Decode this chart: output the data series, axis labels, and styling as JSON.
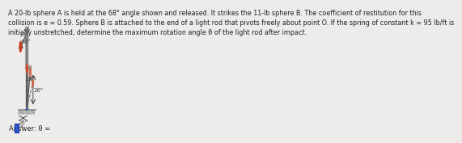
{
  "title_text": "A 20-lb sphere A is held at the 68° angle shown and released. It strikes the 11-lb sphere B. The coefficient of restitution for this\ncollision is e = 0.59. Sphere B is attached to the end of a light rod that pivots freely about point O. If the spring of constant k = 95 lb/ft is\ninitially unstretched, determine the maximum rotation angle θ of the light rod after impact.",
  "answer_label": "Answer: θ =",
  "answer_unit": "°",
  "bg_color": "#edecea",
  "sphere_A_color": "#c84020",
  "sphere_B_color": "#c85030",
  "sphere_B2_color": "#d07050",
  "sphere_B3_color": "#cc6644",
  "rod_color": "#555555",
  "spring_color": "#777777",
  "ground_color": "#888888",
  "wall_color": "#888888",
  "ceiling_color": "#888888",
  "pivot_color": "#5588cc",
  "dim_color": "#444444",
  "angle1_label": "19\"",
  "angle2_label": "68°",
  "angle3_label": "26°",
  "dim_horiz": "26\"",
  "dim_vert": "26\"",
  "answer_box_color": "#3355cc",
  "text_color": "#222222",
  "title_fontsize": 5.8,
  "label_fontsize": 5.0
}
